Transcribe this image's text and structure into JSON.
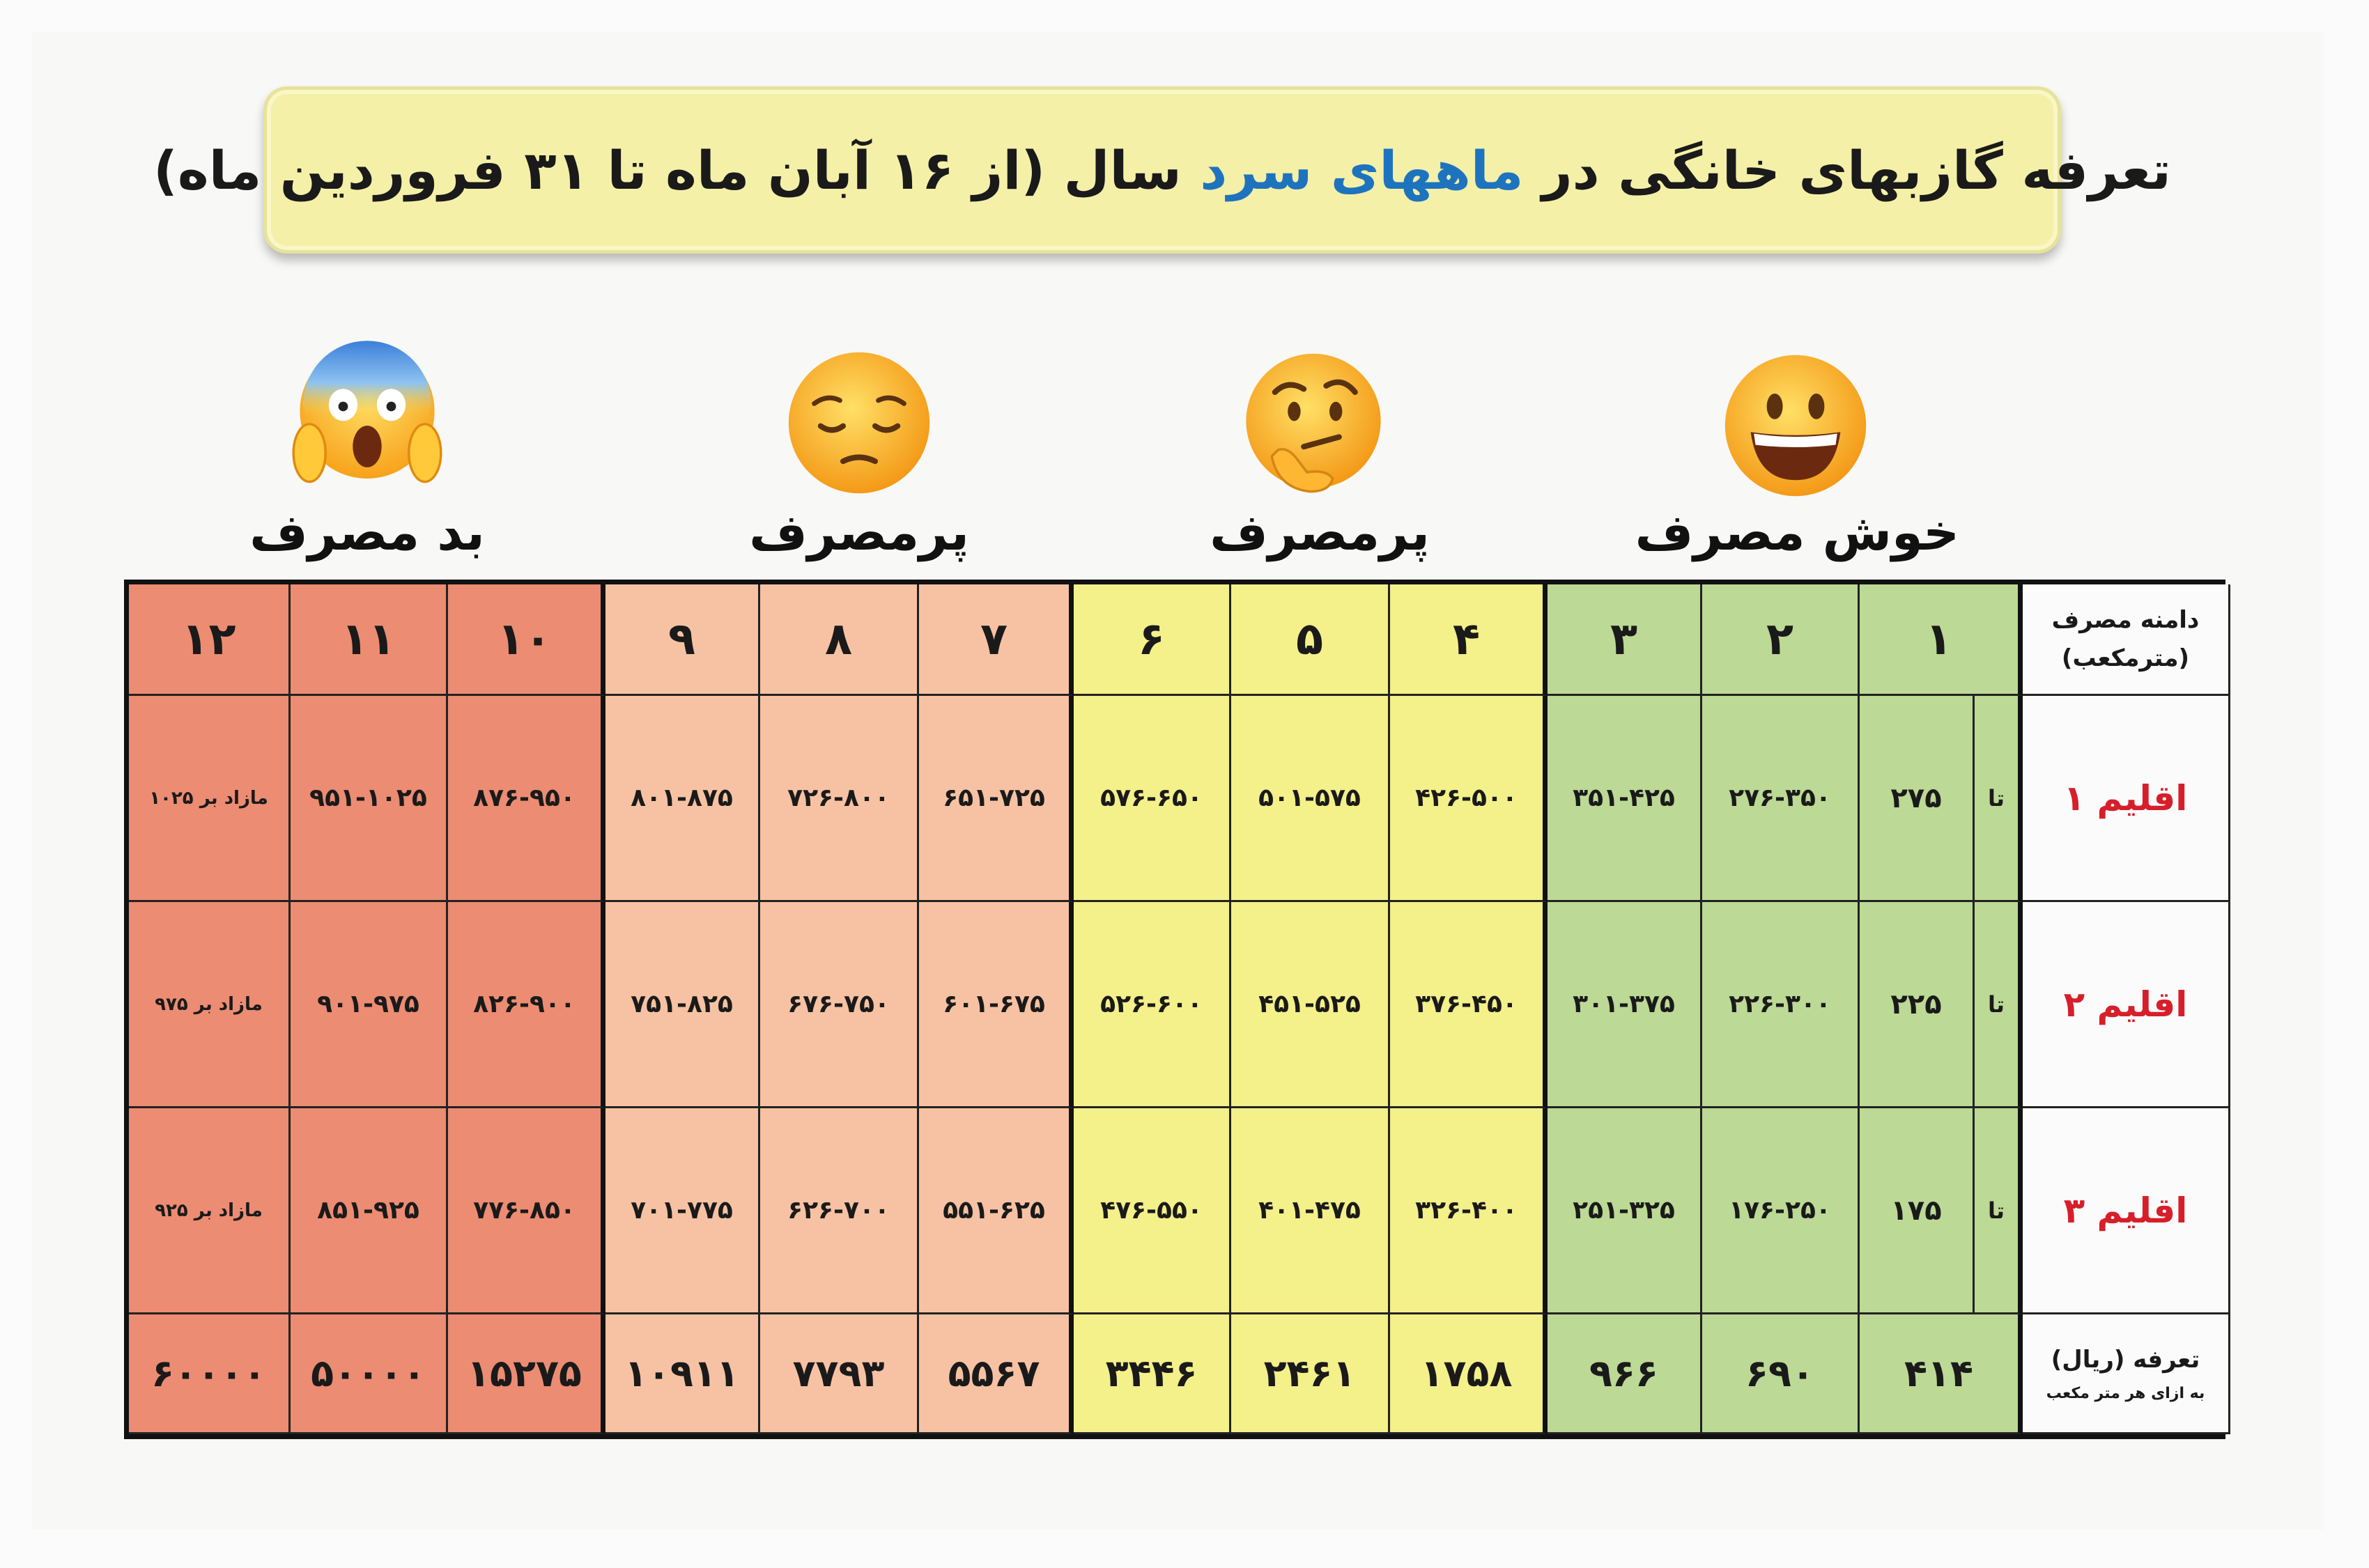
{
  "title": {
    "before": "تعرفه گازبهای خانگی در ",
    "highlight": "ماههای سرد",
    "after": " سال (از ۱۶ آبان ماه تا ۳۱ فروردین ماه)"
  },
  "categories": [
    {
      "label": "بد مصرف",
      "icon": "screaming-face-icon"
    },
    {
      "label": "پرمصرف",
      "icon": "pensive-face-icon"
    },
    {
      "label": "پرمصرف",
      "icon": "thinking-face-icon"
    },
    {
      "label": "خوش مصرف",
      "icon": "grinning-face-icon"
    }
  ],
  "colors": {
    "red": "#ec8c72",
    "peach": "#f7c2a3",
    "yellow": "#f4f08a",
    "green": "#bcd995",
    "region_text": "#d61f2a",
    "highlight": "#1e73be"
  },
  "table": {
    "range_header_line1": "دامنه مصرف",
    "range_header_line2": "(مترمکعب)",
    "columns": [
      "۱۲",
      "۱۱",
      "۱۰",
      "۹",
      "۸",
      "۷",
      "۶",
      "۵",
      "۴",
      "۳",
      "۲",
      "۱"
    ],
    "upto": "تا",
    "rows": [
      {
        "label": "اقلیم ۱",
        "first": "۲۷۵",
        "cells": [
          "مازاد بر ۱۰۲۵",
          "۹۵۱-۱۰۲۵",
          "۸۷۶-۹۵۰",
          "۸۰۱-۸۷۵",
          "۷۲۶-۸۰۰",
          "۶۵۱-۷۲۵",
          "۵۷۶-۶۵۰",
          "۵۰۱-۵۷۵",
          "۴۲۶-۵۰۰",
          "۳۵۱-۴۲۵",
          "۲۷۶-۳۵۰"
        ]
      },
      {
        "label": "اقلیم ۲",
        "first": "۲۲۵",
        "cells": [
          "مازاد بر ۹۷۵",
          "۹۰۱-۹۷۵",
          "۸۲۶-۹۰۰",
          "۷۵۱-۸۲۵",
          "۶۷۶-۷۵۰",
          "۶۰۱-۶۷۵",
          "۵۲۶-۶۰۰",
          "۴۵۱-۵۲۵",
          "۳۷۶-۴۵۰",
          "۳۰۱-۳۷۵",
          "۲۲۶-۳۰۰"
        ]
      },
      {
        "label": "اقلیم ۳",
        "first": "۱۷۵",
        "cells": [
          "مازاد بر ۹۲۵",
          "۸۵۱-۹۲۵",
          "۷۷۶-۸۵۰",
          "۷۰۱-۷۷۵",
          "۶۲۶-۷۰۰",
          "۵۵۱-۶۲۵",
          "۴۷۶-۵۵۰",
          "۴۰۱-۴۷۵",
          "۳۲۶-۴۰۰",
          "۲۵۱-۳۲۵",
          "۱۷۶-۲۵۰"
        ]
      }
    ],
    "tariff_header_line1": "تعرفه (ریال)",
    "tariff_header_line2": "به ازای هر متر مکعب",
    "tariffs": [
      "۶۰۰۰۰",
      "۵۰۰۰۰",
      "۱۵۲۷۵",
      "۱۰۹۱۱",
      "۷۷۹۳",
      "۵۵۶۷",
      "۳۴۴۶",
      "۲۴۶۱",
      "۱۷۵۸",
      "۹۶۶",
      "۶۹۰",
      "۴۱۴"
    ]
  }
}
